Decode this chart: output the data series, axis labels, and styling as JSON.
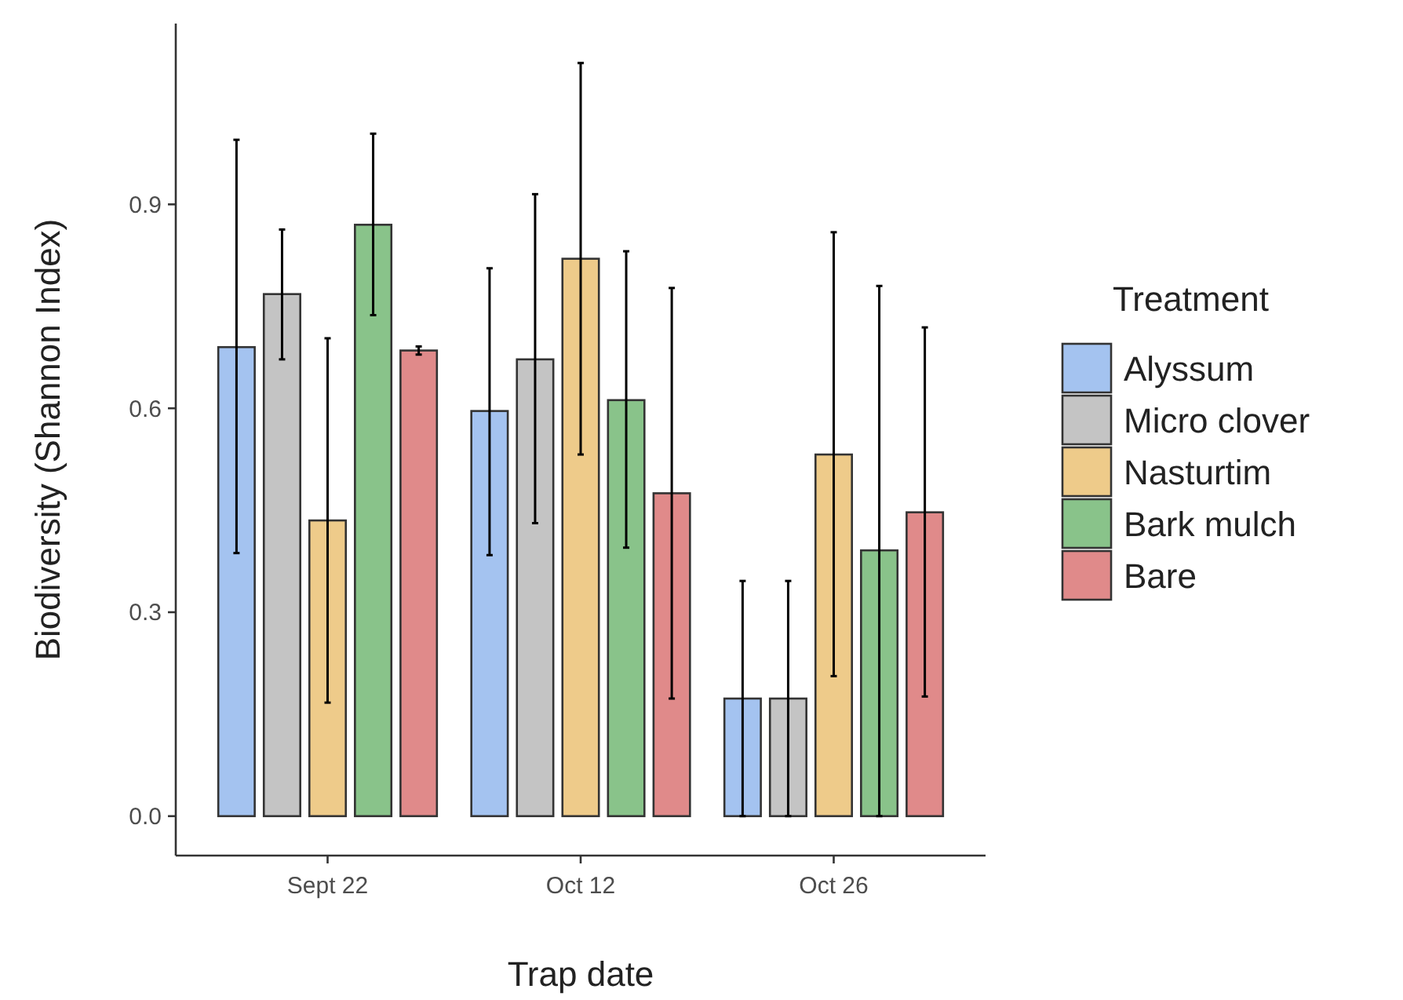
{
  "chart_data": {
    "type": "bar",
    "xlabel": "Trap date",
    "ylabel": "Biodiversity (Shannon Index)",
    "legend_title": "Treatment",
    "legend": "right",
    "grid": false,
    "categories": [
      "Sept 22",
      "Oct 12",
      "Oct 26"
    ],
    "ylim": [
      -0.058,
      1.166
    ],
    "yticks": [
      {
        "value": 0,
        "label": "0.0"
      },
      0.3,
      0.6,
      0.9
    ],
    "series": [
      {
        "name": "Alyssum",
        "color": "#a4c3f0",
        "values": [
          0.69,
          0.596,
          0.173
        ],
        "errors": [
          [
            0.387,
            0.995
          ],
          [
            0.384,
            0.806
          ],
          [
            0,
            0.346
          ]
        ]
      },
      {
        "name": "Micro clover",
        "color": "#c4c4c4",
        "values": [
          0.768,
          0.672,
          0.173
        ],
        "errors": [
          [
            0.672,
            0.863
          ],
          [
            0.431,
            0.915
          ],
          [
            0,
            0.346
          ]
        ]
      },
      {
        "name": "Nasturtim",
        "color": "#eecb8a",
        "values": [
          0.435,
          0.82,
          0.532
        ],
        "errors": [
          [
            0.167,
            0.703
          ],
          [
            0.532,
            1.108
          ],
          [
            0.206,
            0.859
          ]
        ]
      },
      {
        "name": "Bark mulch",
        "color": "#89c38a",
        "values": [
          0.87,
          0.612,
          0.391
        ],
        "errors": [
          [
            0.737,
            1.004
          ],
          [
            0.395,
            0.831
          ],
          [
            0,
            0.78
          ]
        ]
      },
      {
        "name": "Bare",
        "color": "#e08a8a",
        "values": [
          0.685,
          0.475,
          0.447
        ],
        "errors": [
          [
            0.679,
            0.691
          ],
          [
            0.173,
            0.777
          ],
          [
            0.176,
            0.719
          ]
        ]
      }
    ]
  }
}
